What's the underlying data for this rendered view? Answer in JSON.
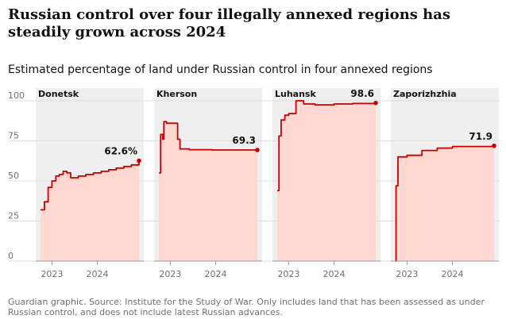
{
  "title": "Russian control over four illegally annexed regions has steadily grown across 2024",
  "subtitle": "Estimated percentage of land under Russian control in four annexed regions",
  "source": "Guardian graphic. Source: Institute for the Study of War. Only includes land that has been assessed as under Russian control, and does not include latest Russian advances.",
  "colors": {
    "line": "#c70000",
    "fill": "#ffd8d2",
    "panel": "#efefef",
    "grid": "#dcdcdc"
  },
  "chart_data": {
    "type": "area",
    "ylim": [
      0,
      100
    ],
    "y_ticks": [
      0,
      25,
      50,
      75,
      100
    ],
    "x_ticks": [
      "2023",
      "2024"
    ],
    "x_range": [
      "2022-10",
      "2024-12"
    ],
    "series": [
      {
        "name": "Donetsk",
        "end_label": "62.6%",
        "points": [
          [
            "2022-10",
            32
          ],
          [
            "2022-11",
            37
          ],
          [
            "2022-12",
            46
          ],
          [
            "2023-01",
            50
          ],
          [
            "2023-02",
            53
          ],
          [
            "2023-03",
            54
          ],
          [
            "2023-04",
            56
          ],
          [
            "2023-05",
            55
          ],
          [
            "2023-06",
            52
          ],
          [
            "2023-07",
            52
          ],
          [
            "2023-08",
            53
          ],
          [
            "2023-10",
            54
          ],
          [
            "2023-12",
            55
          ],
          [
            "2024-02",
            56
          ],
          [
            "2024-04",
            57
          ],
          [
            "2024-06",
            58
          ],
          [
            "2024-08",
            59
          ],
          [
            "2024-10",
            60
          ],
          [
            "2024-12",
            62.6
          ]
        ]
      },
      {
        "name": "Kherson",
        "end_label": "69.3",
        "points": [
          [
            "2022-10",
            55
          ],
          [
            "2022-10-15",
            79
          ],
          [
            "2022-11",
            76
          ],
          [
            "2022-11-10",
            87
          ],
          [
            "2022-12",
            86
          ],
          [
            "2023-02",
            86
          ],
          [
            "2023-03",
            76
          ],
          [
            "2023-03-20",
            70
          ],
          [
            "2023-06",
            69.5
          ],
          [
            "2023-12",
            69.3
          ],
          [
            "2024-06",
            69.3
          ],
          [
            "2024-12",
            69.3
          ]
        ]
      },
      {
        "name": "Luhansk",
        "end_label": "98.6",
        "points": [
          [
            "2022-10",
            44
          ],
          [
            "2022-10-15",
            78
          ],
          [
            "2022-11",
            88
          ],
          [
            "2022-12",
            91
          ],
          [
            "2023-01",
            92
          ],
          [
            "2023-03",
            100
          ],
          [
            "2023-05",
            98
          ],
          [
            "2023-08",
            97.5
          ],
          [
            "2024-01",
            98
          ],
          [
            "2024-06",
            98.3
          ],
          [
            "2024-12",
            98.6
          ]
        ]
      },
      {
        "name": "Zaporizhzhia",
        "end_label": "71.9",
        "points": [
          [
            "2022-10",
            0
          ],
          [
            "2022-10-05",
            47
          ],
          [
            "2022-10-20",
            65
          ],
          [
            "2023-01",
            66
          ],
          [
            "2023-05",
            69
          ],
          [
            "2023-09",
            70.5
          ],
          [
            "2024-01",
            71.5
          ],
          [
            "2024-12",
            71.9
          ]
        ]
      }
    ]
  }
}
